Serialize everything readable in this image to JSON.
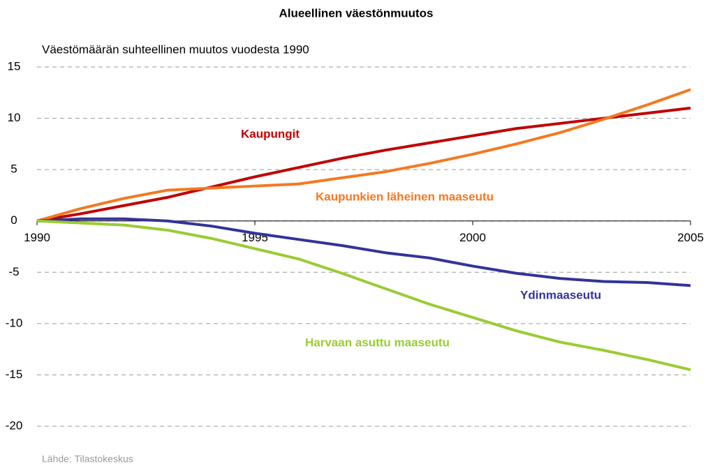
{
  "chart_data": {
    "type": "line",
    "title": "Alueellinen väestönmuutos",
    "y_label": "Väestömäärän suhteellinen muutos vuodesta 1990",
    "source": "Lähde: Tilastokeskus",
    "x": [
      1990,
      1991,
      1992,
      1993,
      1994,
      1995,
      1996,
      1997,
      1998,
      1999,
      2000,
      2001,
      2002,
      2003,
      2004,
      2005
    ],
    "xlim": [
      1990,
      2005
    ],
    "xticks": [
      1990,
      1995,
      2000,
      2005
    ],
    "ylim": [
      -20,
      15
    ],
    "yticks": [
      15,
      10,
      5,
      0,
      -5,
      -10,
      -15,
      -20
    ],
    "grid": true,
    "series": [
      {
        "name": "Kaupungit",
        "color": "#c00000",
        "values": [
          0,
          0.7,
          1.5,
          2.3,
          3.3,
          4.3,
          5.2,
          6.1,
          6.9,
          7.6,
          8.3,
          9.0,
          9.5,
          10.0,
          10.5,
          11.0
        ]
      },
      {
        "name": "Kaupunkien läheinen maaseutu",
        "color": "#f47920",
        "values": [
          0,
          1.2,
          2.2,
          3.0,
          3.2,
          3.4,
          3.6,
          4.2,
          4.8,
          5.6,
          6.5,
          7.5,
          8.6,
          9.9,
          11.3,
          12.8
        ]
      },
      {
        "name": "Ydinmaaseutu",
        "color": "#333399",
        "values": [
          0,
          0.2,
          0.2,
          0.0,
          -0.5,
          -1.2,
          -1.8,
          -2.4,
          -3.1,
          -3.6,
          -4.4,
          -5.1,
          -5.6,
          -5.9,
          -6.0,
          -6.3
        ]
      },
      {
        "name": "Harvaan asuttu maaseutu",
        "color": "#99cc33",
        "values": [
          0,
          -0.2,
          -0.4,
          -0.9,
          -1.7,
          -2.7,
          -3.7,
          -5.1,
          -6.6,
          -8.1,
          -9.4,
          -10.7,
          -11.8,
          -12.6,
          -13.5,
          -14.5
        ]
      }
    ]
  }
}
